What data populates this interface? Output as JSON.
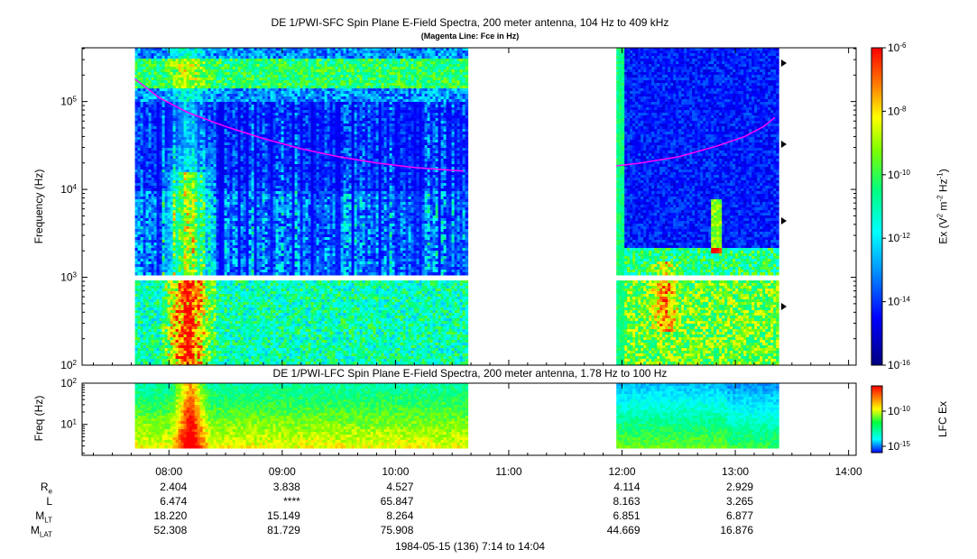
{
  "chart_data": [
    {
      "type": "heatmap",
      "title": "DE 1/PWI-SFC  Spin Plane E-Field Spectra, 200 meter antenna, 104 Hz to 409 kHz",
      "subtitle": "(Magenta Line: Fce in Hz)",
      "ylabel": "Frequency (Hz)",
      "yscale": "log",
      "ylim": [
        100,
        409000
      ],
      "yticks": [
        "10^2",
        "10^3",
        "10^4",
        "10^5"
      ],
      "data_time_ranges": [
        [
          "07:42",
          "10:37"
        ],
        [
          "11:57",
          "13:22"
        ]
      ],
      "colorbar": {
        "label": "Ex (V^2 m^-2 Hz^-1)",
        "scale": "log",
        "range": [
          1e-16,
          1e-06
        ],
        "ticks": [
          "10^-6",
          "10^-8",
          "10^-10",
          "10^-12",
          "10^-14",
          "10^-16"
        ]
      },
      "series": [
        {
          "name": "Fce",
          "color": "#ff00ff",
          "segments": [
            {
              "x": [
                "07:42",
                "07:55",
                "08:10",
                "08:30",
                "08:50",
                "09:10",
                "09:30",
                "09:50",
                "10:10",
                "10:30",
                "10:36"
              ],
              "y": [
                180000,
                110000,
                75000,
                52000,
                38000,
                29000,
                23500,
                20000,
                17800,
                16500,
                16200
              ]
            },
            {
              "x": [
                "11:57",
                "12:10",
                "12:30",
                "12:50",
                "13:05",
                "13:15",
                "13:21"
              ],
              "y": [
                18500,
                20000,
                23500,
                31000,
                40000,
                52000,
                66000
              ]
            }
          ]
        }
      ]
    },
    {
      "type": "heatmap",
      "title": "DE 1/PWI-LFC  Spin Plane E-Field Spectra, 200 meter antenna, 1.78 Hz to 100 Hz",
      "ylabel": "Freq (Hz)",
      "yscale": "log",
      "ylim": [
        1.78,
        100
      ],
      "yticks": [
        "10^1",
        "10^2"
      ],
      "data_time_ranges": [
        [
          "07:42",
          "10:37"
        ],
        [
          "11:57",
          "13:22"
        ]
      ],
      "colorbar": {
        "label": "LFC Ex",
        "scale": "log",
        "ticks": [
          "10^-10",
          "10^-15"
        ]
      }
    }
  ],
  "xaxis": {
    "tick_labels": [
      "08:00",
      "09:00",
      "10:00",
      "11:00",
      "12:00",
      "13:00",
      "14:00"
    ],
    "range": [
      "07:14",
      "14:04"
    ],
    "date_label": "1984-05-15 (136) 7:14 to 14:04"
  },
  "ephemeris": {
    "rows": [
      {
        "label": "R",
        "sub": "e",
        "values": [
          "2.404",
          "3.838",
          "4.527",
          "",
          "4.114",
          "2.929"
        ]
      },
      {
        "label": "L",
        "sub": "",
        "values": [
          "6.474",
          "****",
          "65.847",
          "",
          "8.163",
          "3.265"
        ]
      },
      {
        "label": "M",
        "sub": "LT",
        "values": [
          "18.220",
          "15.149",
          "8.264",
          "",
          "6.851",
          "6.877"
        ]
      },
      {
        "label": "M",
        "sub": "LAT",
        "values": [
          "52.308",
          "81.729",
          "75.908",
          "",
          "44.669",
          "16.876"
        ]
      }
    ]
  },
  "colors": {
    "fce_line": "#ff00ff",
    "background": "#ffffff",
    "data_gap": "#ffffff"
  }
}
